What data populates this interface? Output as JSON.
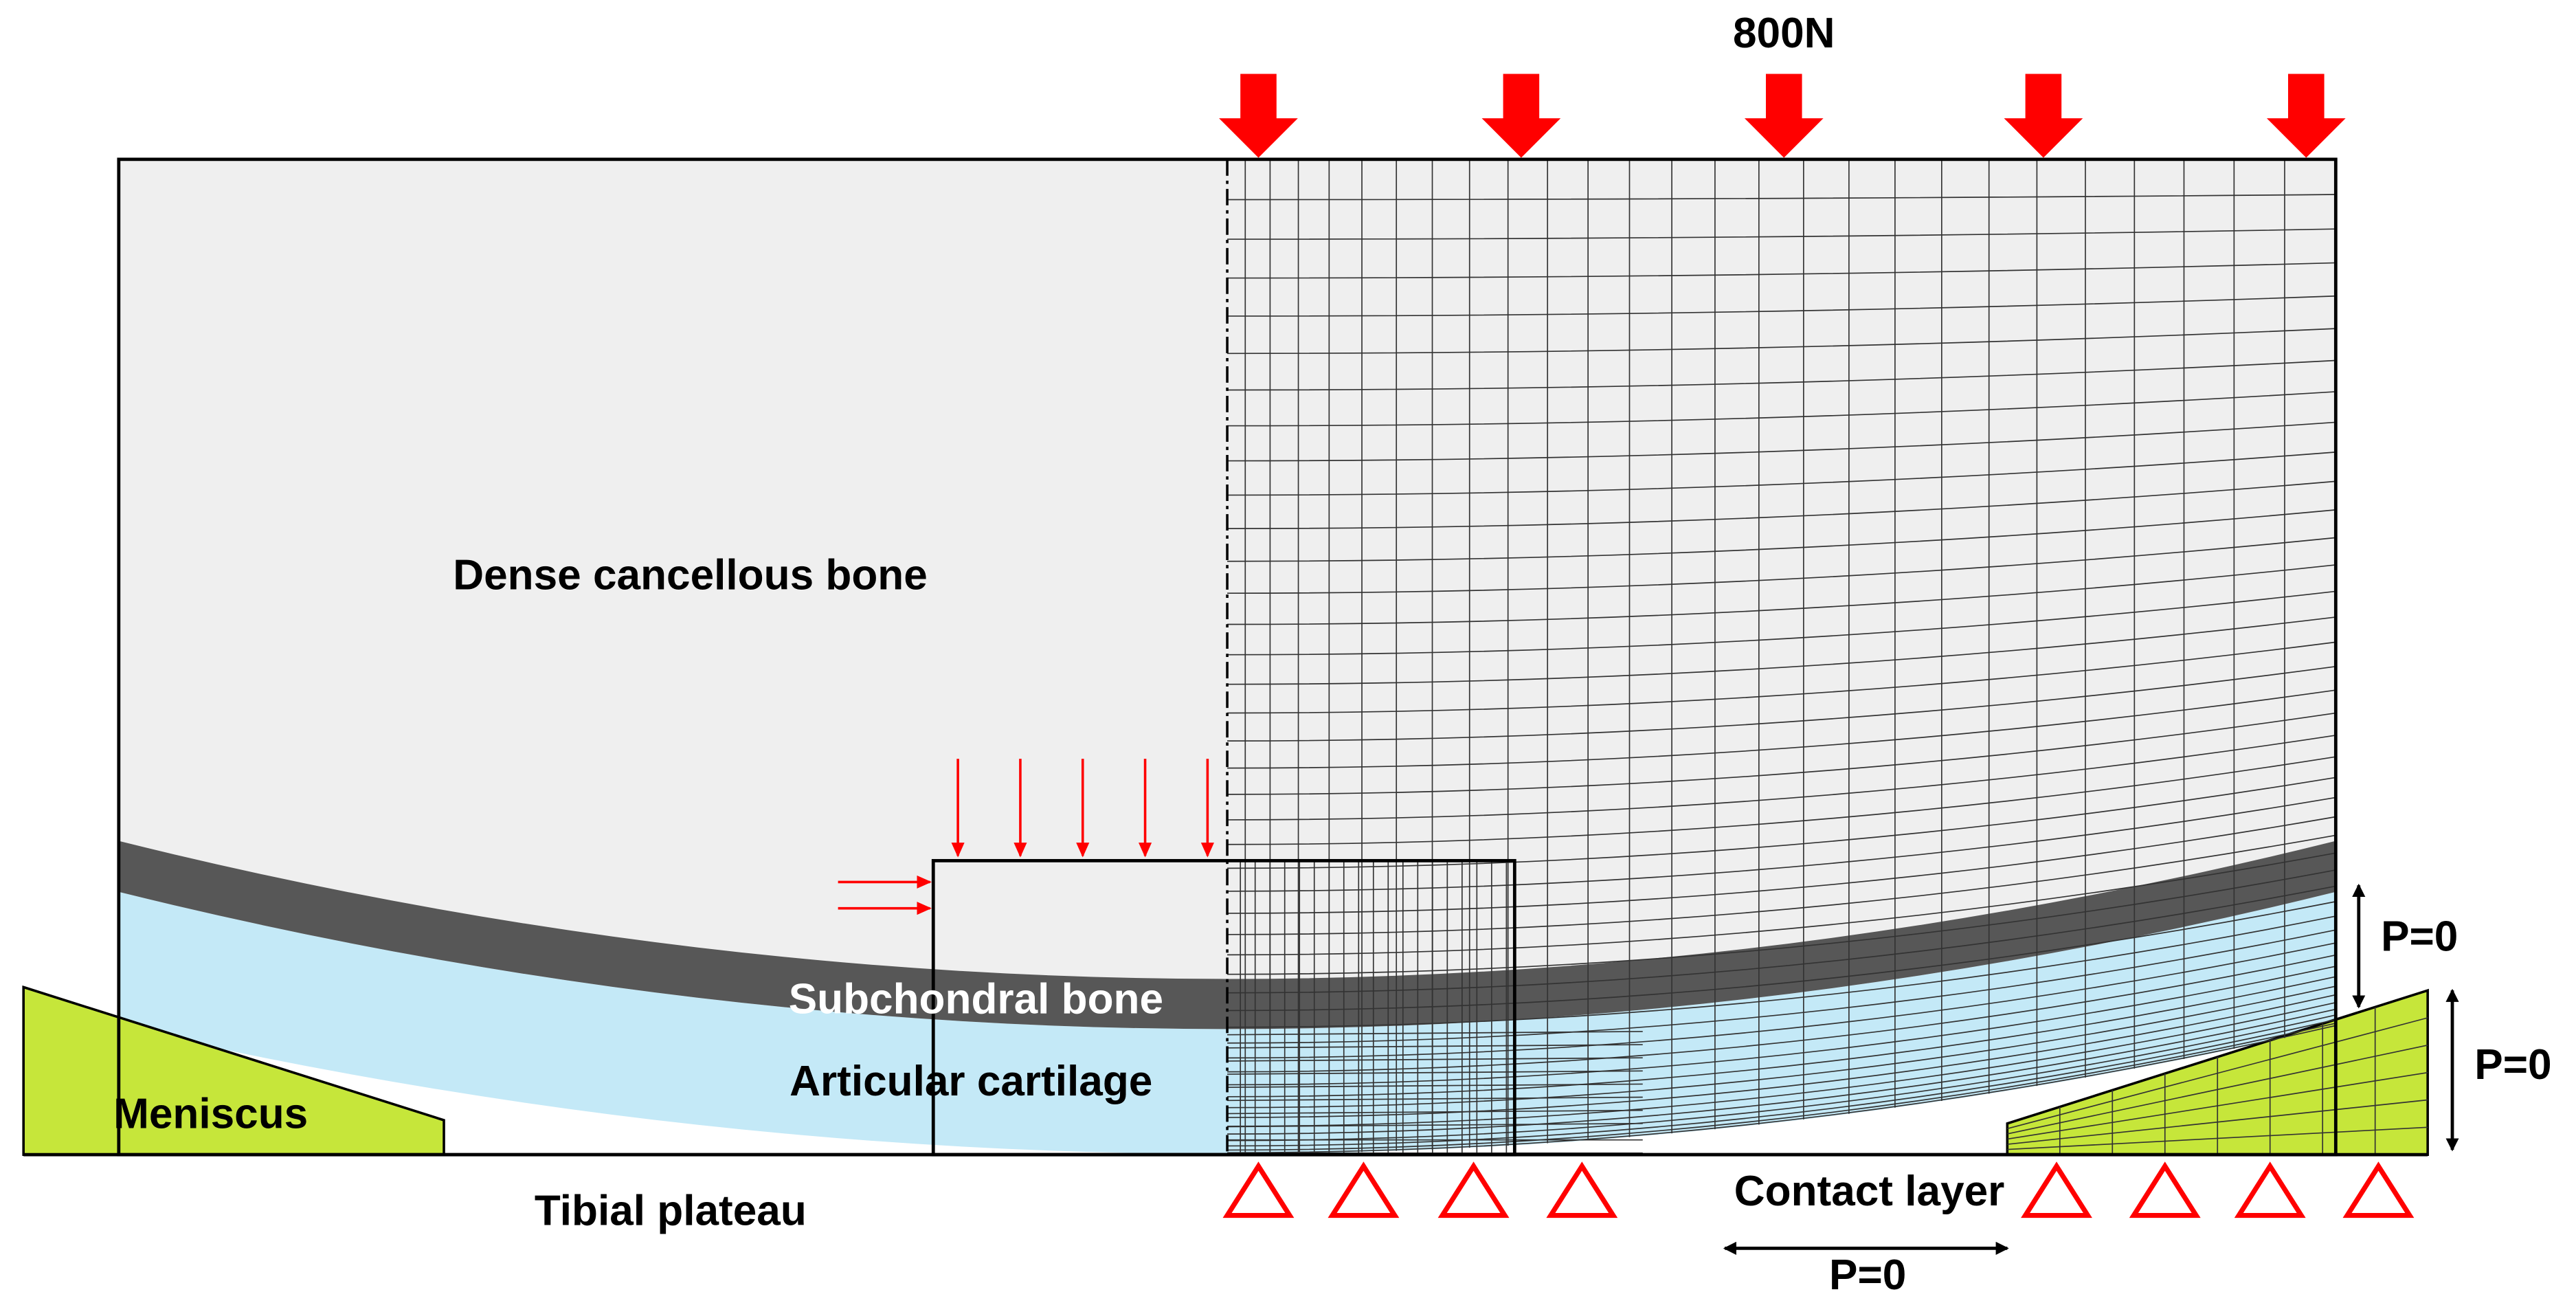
{
  "labels": {
    "load": "800N",
    "dense_bone": "Dense cancellous bone",
    "subchondral": "Subchondral bone",
    "cartilage": "Articular cartilage",
    "meniscus": "Meniscus",
    "tibial_plateau": "Tibial plateau",
    "contact_layer": "Contact layer",
    "pressure_side": "P=0",
    "pressure_meniscus": "P=0",
    "pressure_bottom": "P=0"
  }
}
